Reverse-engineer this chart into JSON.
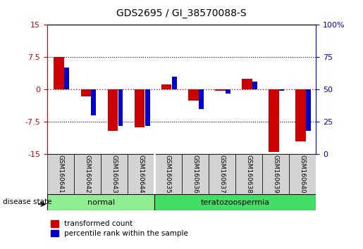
{
  "title": "GDS2695 / GI_38570088-S",
  "samples": [
    "GSM160641",
    "GSM160642",
    "GSM160643",
    "GSM160644",
    "GSM160635",
    "GSM160636",
    "GSM160637",
    "GSM160638",
    "GSM160639",
    "GSM160640"
  ],
  "red_values": [
    7.5,
    -1.5,
    -9.5,
    -8.8,
    1.2,
    -2.5,
    -0.3,
    2.5,
    -14.5,
    -12.0
  ],
  "blue_percentiles": [
    67,
    30,
    22,
    22,
    60,
    35,
    47,
    56,
    49,
    18
  ],
  "ylim_left": [
    -15,
    15
  ],
  "ylim_right": [
    0,
    100
  ],
  "yticks_left": [
    -15,
    -7.5,
    0,
    7.5,
    15
  ],
  "yticks_right": [
    0,
    25,
    50,
    75,
    100
  ],
  "ytick_labels_left": [
    "-15",
    "-7.5",
    "0",
    "7.5",
    "15"
  ],
  "ytick_labels_right": [
    "0",
    "25",
    "50",
    "75",
    "100%"
  ],
  "bar_width": 0.35,
  "red_color": "#CC0000",
  "blue_color": "#0000CC",
  "background_color": "#ffffff",
  "left_tick_color": "#CC0000",
  "right_tick_color": "#0000CC",
  "disease_label": "disease state",
  "legend_red": "transformed count",
  "legend_blue": "percentile rank within the sample",
  "normal_color": "#90EE90",
  "tera_color": "#44DD66"
}
